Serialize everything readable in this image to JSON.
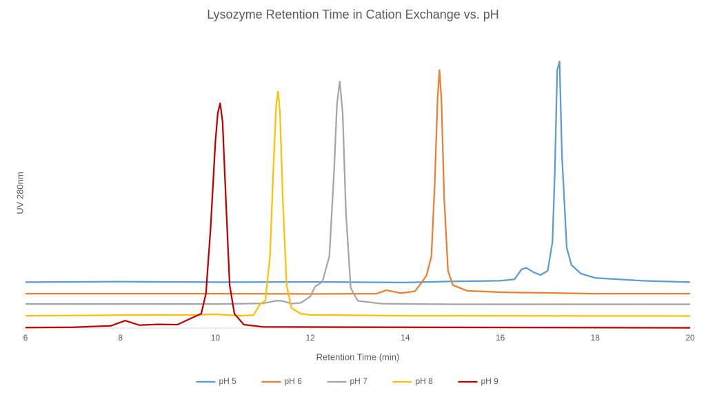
{
  "chart_data": {
    "type": "line",
    "title": "Lysozyme Retention Time in Cation Exchange vs. pH",
    "x_label": "Retention Time (min)",
    "y_label": "UV 280nm",
    "xlim": [
      6,
      20
    ],
    "xticks": [
      6,
      8,
      10,
      12,
      14,
      16,
      18,
      20
    ],
    "ylim": [
      0,
      100
    ],
    "grid": false,
    "legend": "bottom",
    "series": [
      {
        "name": "pH 5",
        "color": "#5b9bd5",
        "x": [
          6,
          8,
          10,
          12,
          14,
          15,
          16,
          16.3,
          16.45,
          16.55,
          16.7,
          16.85,
          17.0,
          17.1,
          17.15,
          17.2,
          17.25,
          17.3,
          17.4,
          17.5,
          17.7,
          18,
          19,
          20
        ],
        "values": [
          16,
          16.2,
          16,
          16.1,
          15.9,
          16.3,
          16.5,
          17,
          20.5,
          21,
          19.5,
          18.5,
          20,
          30,
          55,
          90,
          93,
          60,
          28,
          22,
          19,
          17.5,
          16.5,
          16
        ]
      },
      {
        "name": "pH 6",
        "color": "#ed7d31",
        "x": [
          6,
          8,
          10,
          12,
          13.4,
          13.6,
          13.9,
          14.2,
          14.35,
          14.45,
          14.55,
          14.62,
          14.68,
          14.72,
          14.76,
          14.82,
          14.9,
          15,
          15.3,
          16,
          18,
          20
        ],
        "values": [
          12,
          12,
          12,
          11.9,
          12,
          13.2,
          12.2,
          12.8,
          16,
          18.5,
          25,
          50,
          80,
          90,
          80,
          45,
          20,
          15,
          13,
          12.5,
          12,
          12
        ]
      },
      {
        "name": "pH 7",
        "color": "#a5a5a5",
        "x": [
          6,
          8,
          10,
          11,
          11.3,
          11.4,
          11.6,
          11.8,
          12.0,
          12.1,
          12.25,
          12.4,
          12.5,
          12.56,
          12.62,
          12.68,
          12.75,
          12.85,
          13,
          13.5,
          15,
          20
        ],
        "values": [
          8.4,
          8.4,
          8.4,
          8.6,
          9.6,
          9.5,
          8.5,
          8.8,
          11,
          14.5,
          16,
          25,
          55,
          78,
          86,
          75,
          40,
          14,
          9.5,
          8.5,
          8.3,
          8.3
        ]
      },
      {
        "name": "pH 8",
        "color": "#ffc000",
        "x": [
          6,
          8,
          9.5,
          10,
          10.5,
          10.8,
          10.95,
          11.05,
          11.15,
          11.22,
          11.28,
          11.32,
          11.36,
          11.42,
          11.5,
          11.6,
          11.8,
          12,
          14,
          20
        ],
        "values": [
          4.3,
          4.5,
          4.6,
          4.8,
          4.3,
          4.5,
          8.5,
          9.5,
          25,
          55,
          78,
          82.5,
          75,
          45,
          15,
          7,
          5,
          4.6,
          4.3,
          4.2
        ]
      },
      {
        "name": "pH 9",
        "color": "#c00000",
        "x": [
          6,
          7,
          7.8,
          8.1,
          8.4,
          8.8,
          9.2,
          9.5,
          9.7,
          9.8,
          9.9,
          10,
          10.05,
          10.1,
          10.15,
          10.22,
          10.3,
          10.4,
          10.6,
          11,
          14,
          20
        ],
        "values": [
          0.2,
          0.3,
          0.8,
          2.6,
          1,
          1.3,
          1.2,
          3.5,
          5,
          12,
          35,
          65,
          75,
          78.4,
          72,
          45,
          15,
          5,
          1.2,
          0.4,
          0.3,
          0.1
        ]
      }
    ]
  }
}
